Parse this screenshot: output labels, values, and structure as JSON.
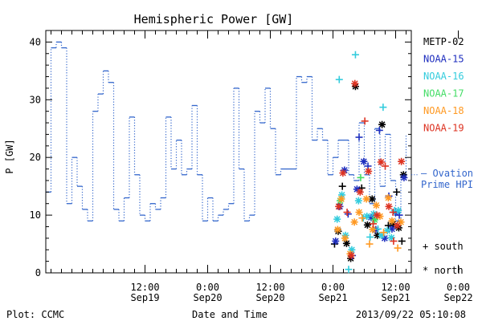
{
  "chart_data": {
    "type": "line",
    "title": "Hemispheric Power [GW]",
    "xlabel": "Date and Time",
    "ylabel": "P [GW]",
    "footer_left": "Plot: CCMC",
    "footer_right": "2013/09/22 05:10:08",
    "ylim": [
      0,
      42
    ],
    "xlim": [
      -7,
      63
    ],
    "x_units": "hours since 2013-09-19 00:00 UT",
    "y_ticks": [
      "0",
      "10",
      "20",
      "30",
      "40"
    ],
    "x_ticks": [
      {
        "t": 12,
        "time": "12:00",
        "date": "Sep19"
      },
      {
        "t": 24,
        "time": "0:00",
        "date": "Sep20"
      },
      {
        "t": 36,
        "time": "12:00",
        "date": "Sep20"
      },
      {
        "t": 48,
        "time": "0:00",
        "date": "Sep21"
      },
      {
        "t": 60,
        "time": "12:00",
        "date": "Sep21"
      },
      {
        "t": 72,
        "time": "0:00",
        "date": "Sep22"
      }
    ],
    "series": [
      {
        "name": "— Ovation Prime HPI",
        "label_lines": [
          "— Ovation",
          "Prime HPI"
        ],
        "color": "#3366cc",
        "style": "dotted-step",
        "x": [
          -6.5,
          -5.5,
          -4.5,
          -3.5,
          -2.5,
          -1.5,
          -0.5,
          0.5,
          1.5,
          2.5,
          3.5,
          4.5,
          5.5,
          6.5,
          7.5,
          8.5,
          9.5,
          10.5,
          11.5,
          12.5,
          13.5,
          14.5,
          15.5,
          16.5,
          17.5,
          18.5,
          19.5,
          20.5,
          21.5,
          22.5,
          23.5,
          24.5,
          25.5,
          26.5,
          27.5,
          28.5,
          29.5,
          30.5,
          31.5,
          32.5,
          33.5,
          34.5,
          35.5,
          36.5,
          37.5,
          38.5,
          39.5,
          40.5,
          41.5,
          42.5,
          43.5,
          44.5,
          45.5,
          46.5,
          47.5,
          48.5,
          49.5,
          50.5,
          51.5,
          52.5,
          53.5,
          54.5,
          55.5,
          56.5,
          57.5,
          58.5,
          59.5,
          60.5,
          61.5
        ],
        "y": [
          14,
          39,
          40,
          39,
          12,
          20,
          15,
          11,
          9,
          28,
          31,
          35,
          33,
          11,
          9,
          13,
          27,
          17,
          10,
          9,
          12,
          11,
          13,
          27,
          18,
          23,
          17,
          18,
          29,
          17,
          9,
          13,
          9,
          10,
          11,
          12,
          32,
          18,
          9,
          10,
          28,
          26,
          32,
          25,
          17,
          18,
          18,
          18,
          34,
          33,
          34,
          23,
          25,
          23,
          17,
          20,
          23,
          23,
          17,
          16,
          26,
          17,
          12,
          25,
          15,
          24,
          16,
          9,
          17
        ]
      },
      {
        "name": "METP-02",
        "color": "#000000"
      },
      {
        "name": "NOAA-15",
        "color": "#1f2fbf"
      },
      {
        "name": "NOAA-16",
        "color": "#33ccdd"
      },
      {
        "name": "NOAA-17",
        "color": "#44dd66"
      },
      {
        "name": "NOAA-18",
        "color": "#ff9922"
      },
      {
        "name": "NOAA-19",
        "color": "#dd3322"
      }
    ],
    "marker_legend": [
      {
        "symbol": "+",
        "label": "south"
      },
      {
        "symbol": "*",
        "label": "north"
      }
    ],
    "satellite_points": [
      {
        "sat": 0,
        "h": "+",
        "x": 48.3,
        "y": 5.0
      },
      {
        "sat": 0,
        "h": "*",
        "x": 49.0,
        "y": 7.2
      },
      {
        "sat": 0,
        "h": "+",
        "x": 49.8,
        "y": 15.0
      },
      {
        "sat": 0,
        "h": "*",
        "x": 50.6,
        "y": 5.1
      },
      {
        "sat": 0,
        "h": "*",
        "x": 51.4,
        "y": 2.5
      },
      {
        "sat": 0,
        "h": "*",
        "x": 52.3,
        "y": 32.3
      },
      {
        "sat": 0,
        "h": "+",
        "x": 53.5,
        "y": 14.7
      },
      {
        "sat": 0,
        "h": "*",
        "x": 54.6,
        "y": 8.3
      },
      {
        "sat": 0,
        "h": "*",
        "x": 55.5,
        "y": 12.8
      },
      {
        "sat": 0,
        "h": "*",
        "x": 56.5,
        "y": 6.5
      },
      {
        "sat": 0,
        "h": "*",
        "x": 57.4,
        "y": 25.7
      },
      {
        "sat": 0,
        "h": "+",
        "x": 58.6,
        "y": 8.2
      },
      {
        "sat": 0,
        "h": "*",
        "x": 59.5,
        "y": 8.5
      },
      {
        "sat": 0,
        "h": "+",
        "x": 60.2,
        "y": 14.0
      },
      {
        "sat": 0,
        "h": "*",
        "x": 60.6,
        "y": 7.8
      },
      {
        "sat": 0,
        "h": "+",
        "x": 61.2,
        "y": 5.5
      },
      {
        "sat": 0,
        "h": "*",
        "x": 61.5,
        "y": 17.0
      },
      {
        "sat": 1,
        "h": "*",
        "x": 48.5,
        "y": 5.5
      },
      {
        "sat": 1,
        "h": "*",
        "x": 49.3,
        "y": 11.5
      },
      {
        "sat": 1,
        "h": "*",
        "x": 50.2,
        "y": 17.8
      },
      {
        "sat": 1,
        "h": "+",
        "x": 50.9,
        "y": 10.2
      },
      {
        "sat": 1,
        "h": "+",
        "x": 51.7,
        "y": 3.0
      },
      {
        "sat": 1,
        "h": "*",
        "x": 52.6,
        "y": 14.5
      },
      {
        "sat": 1,
        "h": "+",
        "x": 53.0,
        "y": 23.5
      },
      {
        "sat": 1,
        "h": "*",
        "x": 53.9,
        "y": 19.3
      },
      {
        "sat": 1,
        "h": "+",
        "x": 54.7,
        "y": 18.5
      },
      {
        "sat": 1,
        "h": "*",
        "x": 55.3,
        "y": 9.6
      },
      {
        "sat": 1,
        "h": "*",
        "x": 56.2,
        "y": 7.5
      },
      {
        "sat": 1,
        "h": "+",
        "x": 56.9,
        "y": 24.7
      },
      {
        "sat": 1,
        "h": "*",
        "x": 57.9,
        "y": 6.0
      },
      {
        "sat": 1,
        "h": "+",
        "x": 58.7,
        "y": 13.3
      },
      {
        "sat": 1,
        "h": "*",
        "x": 59.3,
        "y": 7.6
      },
      {
        "sat": 1,
        "h": "*",
        "x": 59.9,
        "y": 10.5
      },
      {
        "sat": 1,
        "h": "+",
        "x": 60.7,
        "y": 10.0
      },
      {
        "sat": 1,
        "h": "*",
        "x": 61.6,
        "y": 16.5
      },
      {
        "sat": 2,
        "h": "*",
        "x": 48.8,
        "y": 9.3
      },
      {
        "sat": 2,
        "h": "+",
        "x": 49.2,
        "y": 33.5
      },
      {
        "sat": 2,
        "h": "*",
        "x": 49.7,
        "y": 13.5
      },
      {
        "sat": 2,
        "h": "*",
        "x": 50.4,
        "y": 6.5
      },
      {
        "sat": 2,
        "h": "+",
        "x": 51.0,
        "y": 0.6
      },
      {
        "sat": 2,
        "h": "*",
        "x": 51.6,
        "y": 4.0
      },
      {
        "sat": 2,
        "h": "+",
        "x": 52.3,
        "y": 37.8
      },
      {
        "sat": 2,
        "h": "*",
        "x": 52.9,
        "y": 12.5
      },
      {
        "sat": 2,
        "h": "+",
        "x": 53.8,
        "y": 9.5
      },
      {
        "sat": 2,
        "h": "*",
        "x": 54.5,
        "y": 9.8
      },
      {
        "sat": 2,
        "h": "+",
        "x": 55.1,
        "y": 6.2
      },
      {
        "sat": 2,
        "h": "*",
        "x": 55.8,
        "y": 10.2
      },
      {
        "sat": 2,
        "h": "+",
        "x": 56.6,
        "y": 7.6
      },
      {
        "sat": 2,
        "h": "*",
        "x": 57.3,
        "y": 6.5
      },
      {
        "sat": 2,
        "h": "+",
        "x": 57.6,
        "y": 28.7
      },
      {
        "sat": 2,
        "h": "*",
        "x": 58.4,
        "y": 7.3
      },
      {
        "sat": 2,
        "h": "*",
        "x": 59.2,
        "y": 6.1
      },
      {
        "sat": 2,
        "h": "+",
        "x": 59.8,
        "y": 10.8
      },
      {
        "sat": 2,
        "h": "*",
        "x": 60.5,
        "y": 10.8
      },
      {
        "sat": 3,
        "h": "*",
        "x": 49.4,
        "y": 12.5
      },
      {
        "sat": 3,
        "h": "+",
        "x": 53.3,
        "y": 16.5
      },
      {
        "sat": 3,
        "h": "*",
        "x": 56.0,
        "y": 9.2
      },
      {
        "sat": 4,
        "h": "*",
        "x": 48.9,
        "y": 7.5
      },
      {
        "sat": 4,
        "h": "*",
        "x": 49.6,
        "y": 12.8
      },
      {
        "sat": 4,
        "h": "*",
        "x": 50.3,
        "y": 6.0
      },
      {
        "sat": 4,
        "h": "*",
        "x": 51.3,
        "y": 3.3
      },
      {
        "sat": 4,
        "h": "*",
        "x": 52.1,
        "y": 8.8
      },
      {
        "sat": 4,
        "h": "*",
        "x": 53.0,
        "y": 10.5
      },
      {
        "sat": 4,
        "h": "+",
        "x": 53.6,
        "y": 9.5
      },
      {
        "sat": 4,
        "h": "*",
        "x": 54.4,
        "y": 12.8
      },
      {
        "sat": 4,
        "h": "+",
        "x": 55.0,
        "y": 5.0
      },
      {
        "sat": 4,
        "h": "*",
        "x": 55.6,
        "y": 7.5
      },
      {
        "sat": 4,
        "h": "*",
        "x": 56.3,
        "y": 11.7
      },
      {
        "sat": 4,
        "h": "*",
        "x": 57.0,
        "y": 9.8
      },
      {
        "sat": 4,
        "h": "+",
        "x": 57.7,
        "y": 7.0
      },
      {
        "sat": 4,
        "h": "*",
        "x": 58.6,
        "y": 13.0
      },
      {
        "sat": 4,
        "h": "*",
        "x": 59.3,
        "y": 9.0
      },
      {
        "sat": 4,
        "h": "+",
        "x": 60.4,
        "y": 4.3
      },
      {
        "sat": 4,
        "h": "*",
        "x": 61.0,
        "y": 8.8
      },
      {
        "sat": 5,
        "h": "*",
        "x": 49.1,
        "y": 11.5
      },
      {
        "sat": 5,
        "h": "*",
        "x": 49.9,
        "y": 17.3
      },
      {
        "sat": 5,
        "h": "+",
        "x": 50.7,
        "y": 10.5
      },
      {
        "sat": 5,
        "h": "*",
        "x": 51.5,
        "y": 3.0
      },
      {
        "sat": 5,
        "h": "*",
        "x": 52.2,
        "y": 32.8
      },
      {
        "sat": 5,
        "h": "*",
        "x": 53.2,
        "y": 14.0
      },
      {
        "sat": 5,
        "h": "+",
        "x": 54.1,
        "y": 26.3
      },
      {
        "sat": 5,
        "h": "*",
        "x": 54.8,
        "y": 17.6
      },
      {
        "sat": 5,
        "h": "+",
        "x": 55.7,
        "y": 8.5
      },
      {
        "sat": 5,
        "h": "*",
        "x": 56.4,
        "y": 10.0
      },
      {
        "sat": 5,
        "h": "*",
        "x": 57.2,
        "y": 19.2
      },
      {
        "sat": 5,
        "h": "+",
        "x": 58.0,
        "y": 18.5
      },
      {
        "sat": 5,
        "h": "*",
        "x": 58.7,
        "y": 11.5
      },
      {
        "sat": 5,
        "h": "+",
        "x": 59.5,
        "y": 10.5
      },
      {
        "sat": 5,
        "h": "*",
        "x": 60.3,
        "y": 8.2
      },
      {
        "sat": 5,
        "h": "*",
        "x": 61.1,
        "y": 19.3
      },
      {
        "sat": 5,
        "h": "+",
        "x": 59.6,
        "y": 5.5
      }
    ]
  }
}
